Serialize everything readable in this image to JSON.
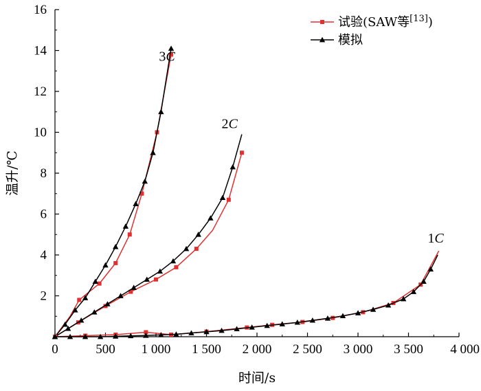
{
  "chart_data": {
    "type": "line",
    "title": "",
    "xlabel": "时间/s",
    "ylabel": "温升/℃",
    "xlim": [
      0,
      4000
    ],
    "ylim": [
      0,
      16
    ],
    "x_ticks": [
      {
        "value": 0,
        "label": "0"
      },
      {
        "value": 500,
        "label": "500"
      },
      {
        "value": 1000,
        "label": "1 000"
      },
      {
        "value": 1500,
        "label": "1 500"
      },
      {
        "value": 2000,
        "label": "2 000"
      },
      {
        "value": 2500,
        "label": "2 500"
      },
      {
        "value": 3000,
        "label": "3 000"
      },
      {
        "value": 3500,
        "label": "3 500"
      },
      {
        "value": 4000,
        "label": "4 000"
      }
    ],
    "y_ticks": [
      {
        "value": 2,
        "label": "2"
      },
      {
        "value": 4,
        "label": "4"
      },
      {
        "value": 6,
        "label": "6"
      },
      {
        "value": 8,
        "label": "8"
      },
      {
        "value": 10,
        "label": "10"
      },
      {
        "value": 12,
        "label": "12"
      },
      {
        "value": 14,
        "label": "14"
      },
      {
        "value": 16,
        "label": "16"
      }
    ],
    "legend": {
      "position": "top-right",
      "entries": [
        {
          "name": "试验(SAW等",
          "sup": "[13]",
          "suffix": ")",
          "color": "#e03030",
          "marker": "square"
        },
        {
          "name": "模拟",
          "color": "#000000",
          "marker": "triangle"
        }
      ]
    },
    "series": [
      {
        "group": "3C",
        "kind": "experiment",
        "color": "#e03030",
        "marker": "square",
        "points": [
          [
            0,
            0
          ],
          [
            150,
            1.0
          ],
          [
            240,
            1.8
          ],
          [
            440,
            2.6
          ],
          [
            600,
            3.6
          ],
          [
            740,
            5.0
          ],
          [
            860,
            7.0
          ],
          [
            1010,
            10.0
          ],
          [
            1150,
            13.8
          ]
        ],
        "markers": [
          [
            0,
            0
          ],
          [
            240,
            1.8
          ],
          [
            440,
            2.6
          ],
          [
            600,
            3.6
          ],
          [
            740,
            5.0
          ],
          [
            860,
            7.0
          ],
          [
            1010,
            10.0
          ],
          [
            1150,
            13.8
          ]
        ]
      },
      {
        "group": "3C",
        "kind": "simulation",
        "color": "#000000",
        "marker": "triangle",
        "points": [
          [
            0,
            0
          ],
          [
            100,
            0.6
          ],
          [
            200,
            1.3
          ],
          [
            300,
            1.9
          ],
          [
            400,
            2.7
          ],
          [
            500,
            3.5
          ],
          [
            600,
            4.4
          ],
          [
            700,
            5.4
          ],
          [
            800,
            6.5
          ],
          [
            890,
            7.6
          ],
          [
            970,
            9.0
          ],
          [
            1050,
            11.0
          ],
          [
            1150,
            14.1
          ]
        ],
        "markers": [
          [
            0,
            0
          ],
          [
            100,
            0.6
          ],
          [
            200,
            1.3
          ],
          [
            300,
            1.9
          ],
          [
            400,
            2.7
          ],
          [
            500,
            3.5
          ],
          [
            600,
            4.4
          ],
          [
            700,
            5.4
          ],
          [
            800,
            6.5
          ],
          [
            890,
            7.6
          ],
          [
            970,
            9.0
          ],
          [
            1050,
            11.0
          ],
          [
            1150,
            14.1
          ]
        ]
      },
      {
        "group": "2C",
        "kind": "experiment",
        "color": "#e03030",
        "marker": "square",
        "points": [
          [
            0,
            0
          ],
          [
            230,
            0.7
          ],
          [
            500,
            1.5
          ],
          [
            750,
            2.2
          ],
          [
            1000,
            2.8
          ],
          [
            1200,
            3.4
          ],
          [
            1400,
            4.3
          ],
          [
            1560,
            5.2
          ],
          [
            1720,
            6.7
          ],
          [
            1850,
            9.0
          ]
        ],
        "markers": [
          [
            0,
            0
          ],
          [
            230,
            0.7
          ],
          [
            500,
            1.5
          ],
          [
            750,
            2.2
          ],
          [
            1000,
            2.8
          ],
          [
            1200,
            3.4
          ],
          [
            1400,
            4.3
          ],
          [
            1720,
            6.7
          ],
          [
            1850,
            9.0
          ]
        ]
      },
      {
        "group": "2C",
        "kind": "simulation",
        "color": "#000000",
        "marker": "triangle",
        "points": [
          [
            0,
            0
          ],
          [
            130,
            0.4
          ],
          [
            260,
            0.8
          ],
          [
            390,
            1.2
          ],
          [
            520,
            1.6
          ],
          [
            650,
            2.0
          ],
          [
            780,
            2.4
          ],
          [
            910,
            2.8
          ],
          [
            1040,
            3.2
          ],
          [
            1170,
            3.7
          ],
          [
            1300,
            4.3
          ],
          [
            1420,
            5.0
          ],
          [
            1540,
            5.8
          ],
          [
            1660,
            6.8
          ],
          [
            1760,
            8.3
          ],
          [
            1850,
            9.9
          ]
        ],
        "markers": [
          [
            0,
            0
          ],
          [
            130,
            0.4
          ],
          [
            260,
            0.8
          ],
          [
            390,
            1.2
          ],
          [
            520,
            1.6
          ],
          [
            650,
            2.0
          ],
          [
            780,
            2.4
          ],
          [
            910,
            2.8
          ],
          [
            1040,
            3.2
          ],
          [
            1170,
            3.7
          ],
          [
            1300,
            4.3
          ],
          [
            1420,
            5.0
          ],
          [
            1540,
            5.8
          ],
          [
            1660,
            6.8
          ],
          [
            1760,
            8.3
          ]
        ]
      },
      {
        "group": "1C",
        "kind": "experiment",
        "color": "#e03030",
        "marker": "square",
        "points": [
          [
            0,
            0
          ],
          [
            300,
            0.05
          ],
          [
            600,
            0.1
          ],
          [
            900,
            0.22
          ],
          [
            1150,
            0.1
          ],
          [
            1500,
            0.25
          ],
          [
            1900,
            0.45
          ],
          [
            2150,
            0.58
          ],
          [
            2450,
            0.72
          ],
          [
            2750,
            0.92
          ],
          [
            3050,
            1.2
          ],
          [
            3350,
            1.65
          ],
          [
            3620,
            2.55
          ],
          [
            3800,
            4.2
          ]
        ],
        "markers": [
          [
            0,
            0
          ],
          [
            300,
            0.05
          ],
          [
            600,
            0.1
          ],
          [
            900,
            0.22
          ],
          [
            1150,
            0.1
          ],
          [
            1500,
            0.25
          ],
          [
            1900,
            0.45
          ],
          [
            2150,
            0.58
          ],
          [
            2450,
            0.72
          ],
          [
            2750,
            0.92
          ],
          [
            3050,
            1.2
          ],
          [
            3350,
            1.65
          ],
          [
            3620,
            2.55
          ]
        ]
      },
      {
        "group": "1C",
        "kind": "simulation",
        "color": "#000000",
        "marker": "triangle",
        "points": [
          [
            0,
            0
          ],
          [
            150,
            0.0
          ],
          [
            300,
            0.0
          ],
          [
            450,
            0.0
          ],
          [
            600,
            0.02
          ],
          [
            750,
            0.04
          ],
          [
            900,
            0.06
          ],
          [
            1050,
            0.09
          ],
          [
            1200,
            0.12
          ],
          [
            1350,
            0.18
          ],
          [
            1500,
            0.24
          ],
          [
            1650,
            0.3
          ],
          [
            1800,
            0.38
          ],
          [
            1950,
            0.46
          ],
          [
            2100,
            0.54
          ],
          [
            2250,
            0.62
          ],
          [
            2400,
            0.7
          ],
          [
            2550,
            0.8
          ],
          [
            2700,
            0.9
          ],
          [
            2850,
            1.02
          ],
          [
            3000,
            1.16
          ],
          [
            3150,
            1.33
          ],
          [
            3300,
            1.54
          ],
          [
            3450,
            1.85
          ],
          [
            3550,
            2.2
          ],
          [
            3650,
            2.7
          ],
          [
            3720,
            3.3
          ],
          [
            3790,
            4.0
          ]
        ],
        "markers": [
          [
            0,
            0
          ],
          [
            150,
            0.0
          ],
          [
            300,
            0.0
          ],
          [
            450,
            0.0
          ],
          [
            600,
            0.02
          ],
          [
            750,
            0.04
          ],
          [
            900,
            0.06
          ],
          [
            1050,
            0.09
          ],
          [
            1200,
            0.12
          ],
          [
            1350,
            0.18
          ],
          [
            1500,
            0.24
          ],
          [
            1650,
            0.3
          ],
          [
            1800,
            0.38
          ],
          [
            1950,
            0.46
          ],
          [
            2100,
            0.54
          ],
          [
            2250,
            0.62
          ],
          [
            2400,
            0.7
          ],
          [
            2550,
            0.8
          ],
          [
            2700,
            0.9
          ],
          [
            2850,
            1.02
          ],
          [
            3000,
            1.16
          ],
          [
            3150,
            1.33
          ],
          [
            3300,
            1.54
          ],
          [
            3450,
            1.85
          ],
          [
            3550,
            2.2
          ],
          [
            3650,
            2.7
          ],
          [
            3720,
            3.3
          ]
        ]
      }
    ],
    "curve_labels": [
      {
        "num": "3",
        "unit": "C",
        "x": 1030,
        "y": 13.5
      },
      {
        "num": "2",
        "unit": "C",
        "x": 1650,
        "y": 10.2
      },
      {
        "num": "1",
        "unit": "C",
        "x": 3690,
        "y": 4.6
      }
    ]
  }
}
